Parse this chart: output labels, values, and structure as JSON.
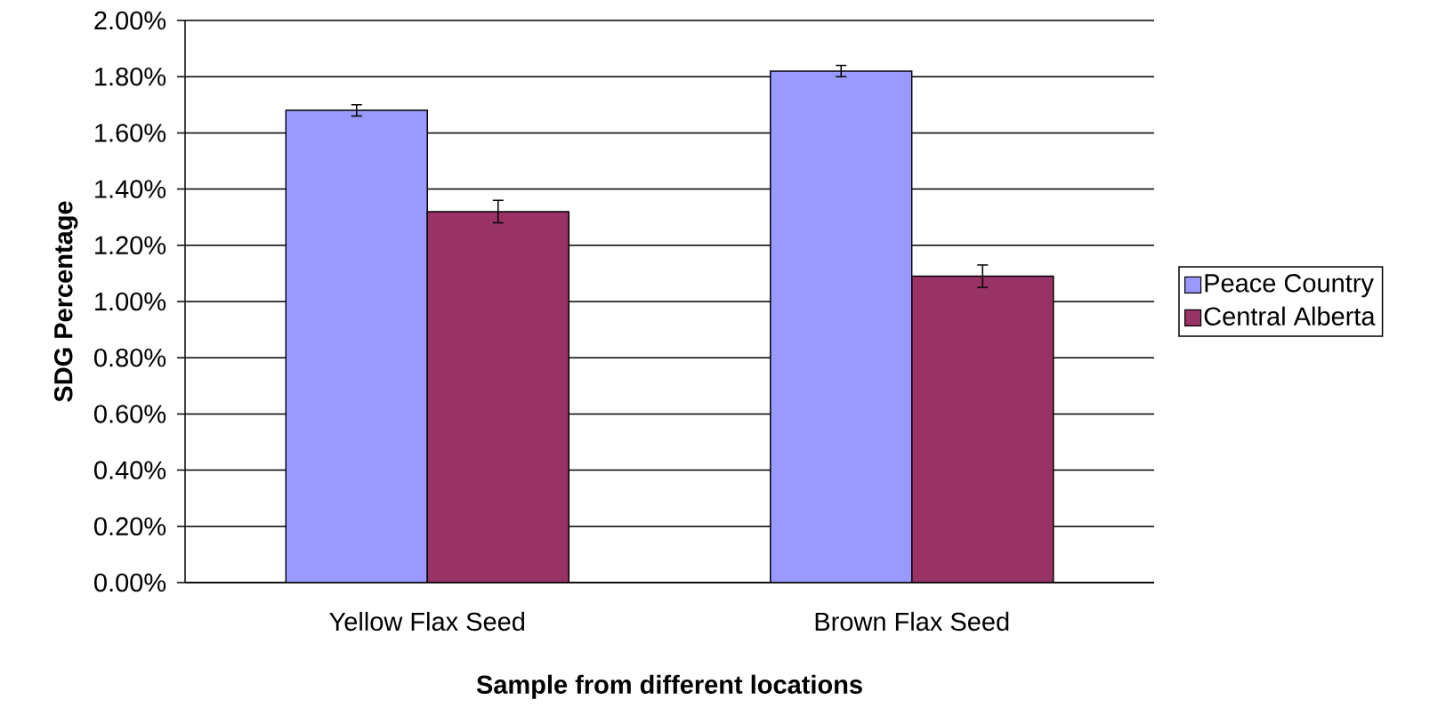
{
  "chart_data": {
    "type": "bar",
    "xlabel": "Sample from different locations",
    "ylabel": "SDG Percentage",
    "categories": [
      "Yellow Flax Seed",
      "Brown Flax Seed"
    ],
    "series": [
      {
        "name": "Peace Country",
        "color": "#9999ff",
        "values": [
          1.68,
          1.82
        ],
        "errors": [
          0.02,
          0.02
        ]
      },
      {
        "name": "Central Alberta",
        "color": "#993366",
        "values": [
          1.32,
          1.09
        ],
        "errors": [
          0.04,
          0.04
        ]
      }
    ],
    "ylim": [
      0,
      2
    ],
    "yticks": [
      {
        "value": 0,
        "label": "0.00%"
      },
      {
        "value": 0.2,
        "label": "0.20%"
      },
      {
        "value": 0.4,
        "label": "0.40%"
      },
      {
        "value": 0.6,
        "label": "0.60%"
      },
      {
        "value": 0.8,
        "label": "0.80%"
      },
      {
        "value": 1.0,
        "label": "1.00%"
      },
      {
        "value": 1.2,
        "label": "1.20%"
      },
      {
        "value": 1.4,
        "label": "1.40%"
      },
      {
        "value": 1.6,
        "label": "1.60%"
      },
      {
        "value": 1.8,
        "label": "1.80%"
      },
      {
        "value": 2.0,
        "label": "2.00%"
      }
    ],
    "grid": "y",
    "legend": "right"
  }
}
